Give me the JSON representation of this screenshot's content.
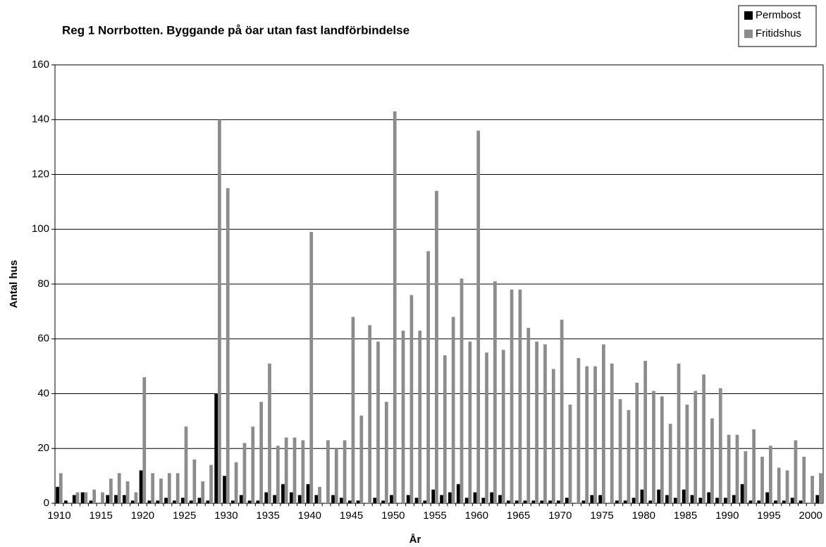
{
  "chart_data": {
    "type": "bar",
    "title": "Reg 1 Norrbotten. Byggande på öar utan fast landförbindelse",
    "x_label": "År",
    "y_label": "Antal hus",
    "categories": [
      "1910",
      null,
      null,
      null,
      null,
      "1915",
      null,
      null,
      null,
      null,
      "1920",
      null,
      null,
      null,
      null,
      "1925",
      null,
      null,
      null,
      null,
      "1930",
      null,
      null,
      null,
      null,
      "1935",
      null,
      null,
      null,
      null,
      "1940",
      null,
      null,
      null,
      null,
      "1945",
      null,
      null,
      null,
      null,
      "1950",
      null,
      null,
      null,
      null,
      "1955",
      null,
      null,
      null,
      null,
      "1960",
      null,
      null,
      null,
      null,
      "1965",
      null,
      null,
      null,
      null,
      "1970",
      null,
      null,
      null,
      null,
      "1975",
      null,
      null,
      null,
      null,
      "1980",
      null,
      null,
      null,
      null,
      "1985",
      null,
      null,
      null,
      null,
      "1990",
      null,
      null,
      null,
      null,
      "1995",
      null,
      null,
      null,
      null,
      "2000",
      null
    ],
    "series": [
      {
        "name": "Permbost",
        "color": "#000000",
        "values": [
          6,
          1,
          3,
          4,
          1,
          0,
          3,
          3,
          3,
          1,
          12,
          1,
          1,
          2,
          1,
          2,
          1,
          2,
          1,
          40,
          10,
          1,
          3,
          1,
          1,
          4,
          3,
          7,
          4,
          3,
          7,
          3,
          0,
          3,
          2,
          1,
          1,
          0,
          2,
          1,
          3,
          0,
          3,
          2,
          1,
          5,
          3,
          4,
          7,
          2,
          4,
          2,
          4,
          3,
          1,
          1,
          1,
          1,
          1,
          1,
          1,
          2,
          0,
          1,
          3,
          3,
          0,
          1,
          1,
          2,
          5,
          1,
          5,
          3,
          2,
          5,
          3,
          2,
          4,
          2,
          2,
          3,
          7,
          1,
          1,
          4,
          1,
          1,
          2,
          1,
          0,
          3
        ]
      },
      {
        "name": "Fritidshus",
        "color": "#8c8c8c",
        "values": [
          11,
          0,
          4,
          4,
          5,
          4,
          9,
          11,
          8,
          4,
          46,
          11,
          9,
          11,
          11,
          28,
          16,
          8,
          14,
          140,
          115,
          15,
          22,
          28,
          37,
          51,
          21,
          24,
          24,
          23,
          99,
          6,
          23,
          20,
          23,
          68,
          32,
          65,
          59,
          37,
          143,
          63,
          76,
          63,
          92,
          114,
          54,
          68,
          82,
          59,
          136,
          55,
          81,
          56,
          78,
          78,
          64,
          59,
          58,
          49,
          67,
          36,
          53,
          50,
          50,
          58,
          51,
          38,
          34,
          44,
          52,
          41,
          39,
          29,
          51,
          36,
          41,
          47,
          31,
          42,
          25,
          25,
          19,
          27,
          17,
          21,
          13,
          12,
          23,
          17,
          10,
          11
        ]
      }
    ],
    "ylim": [
      0,
      160
    ],
    "yticks": [
      0,
      20,
      40,
      60,
      80,
      100,
      120,
      140,
      160
    ],
    "grid": true,
    "legend": "top-right"
  }
}
